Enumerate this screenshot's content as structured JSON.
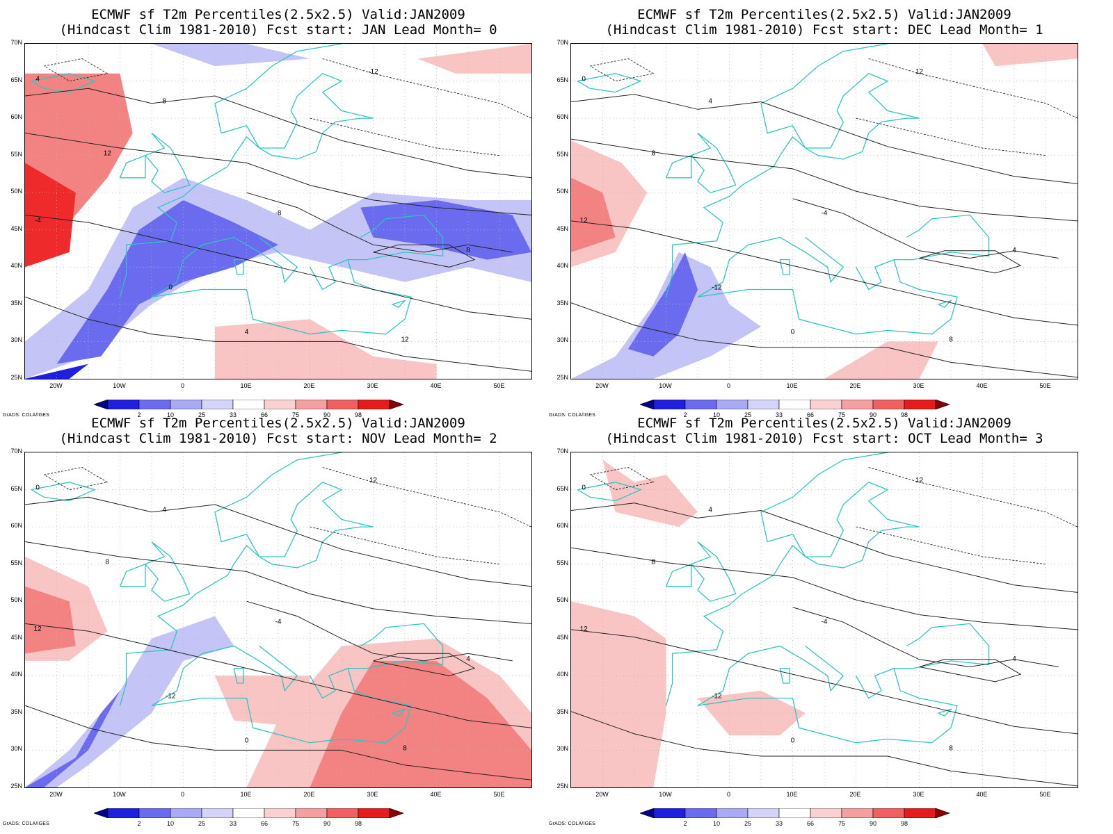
{
  "panels": [
    {
      "title": "ECMWF sf T2m Percentiles(2.5x2.5) Valid:JAN2009",
      "subtitle": "(Hindcast Clim 1981-2010) Fcst start: JAN  Lead Month= 0"
    },
    {
      "title": "ECMWF sf T2m Percentiles(2.5x2.5) Valid:JAN2009",
      "subtitle": "(Hindcast Clim 1981-2010) Fcst start: DEC  Lead Month= 1"
    },
    {
      "title": "ECMWF sf T2m Percentiles(2.5x2.5) Valid:JAN2009",
      "subtitle": "(Hindcast Clim 1981-2010) Fcst start: NOV  Lead Month= 2"
    },
    {
      "title": "ECMWF sf T2m Percentiles(2.5x2.5) Valid:JAN2009",
      "subtitle": "(Hindcast Clim 1981-2010) Fcst start: OCT  Lead Month= 3"
    }
  ],
  "axes": {
    "lat_labels": [
      "70N",
      "65N",
      "60N",
      "55N",
      "50N",
      "45N",
      "40N",
      "35N",
      "30N",
      "25N"
    ],
    "lon_labels": [
      "20W",
      "10W",
      "0",
      "10E",
      "20E",
      "30E",
      "40E",
      "50E"
    ]
  },
  "colorbar": {
    "labels": [
      "2",
      "10",
      "25",
      "33",
      "66",
      "75",
      "90",
      "98"
    ],
    "colors": [
      "#00008b",
      "#1f1fe0",
      "#6b6bf0",
      "#a9a9f5",
      "#d4d4fa",
      "#ffffff",
      "#fad0d0",
      "#f5a0a0",
      "#f06060",
      "#e61c1c",
      "#8b0000"
    ]
  },
  "credit": "GrADS: COLA/IGES",
  "palette": {
    "deep_blue": "#1f1fe0",
    "mid_blue": "#6b6bf0",
    "light_blue": "#c4c4f7",
    "light_red": "#f9c4c4",
    "mid_red": "#f38383",
    "deep_red": "#ee2a2a",
    "coast": "#2ec4c4",
    "contour": "#222222"
  },
  "contour_labels": [
    [
      "4",
      "8",
      "12",
      "-4",
      "-8",
      "0",
      "4",
      "8",
      "12",
      "-12"
    ],
    [
      "0",
      "4",
      "8",
      "12",
      "-4",
      "-12",
      "0",
      "4",
      "8",
      "12"
    ],
    [
      "0",
      "4",
      "8",
      "12",
      "-4",
      "-12",
      "0",
      "4",
      "8",
      "12"
    ],
    [
      "0",
      "4",
      "8",
      "12",
      "-4",
      "-12",
      "0",
      "4",
      "8",
      "12"
    ]
  ]
}
